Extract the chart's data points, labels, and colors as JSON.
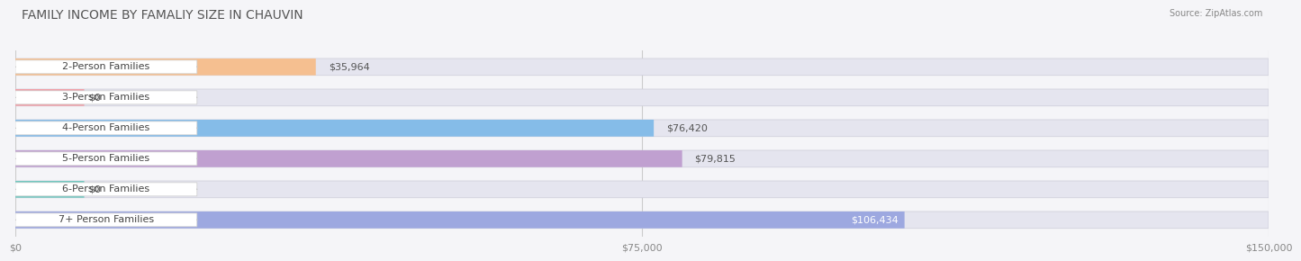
{
  "title": "FAMILY INCOME BY FAMALIY SIZE IN CHAUVIN",
  "source": "Source: ZipAtlas.com",
  "categories": [
    "2-Person Families",
    "3-Person Families",
    "4-Person Families",
    "5-Person Families",
    "6-Person Families",
    "7+ Person Families"
  ],
  "values": [
    35964,
    0,
    76420,
    79815,
    0,
    106434
  ],
  "bar_colors": [
    "#f5bf90",
    "#f0a0a8",
    "#85bce8",
    "#c0a0d0",
    "#72c8c0",
    "#9da8e0"
  ],
  "x_max": 150000,
  "x_ticks": [
    0,
    75000,
    150000
  ],
  "x_tick_labels": [
    "$0",
    "$75,000",
    "$150,000"
  ],
  "value_labels": [
    "$35,964",
    "$0",
    "$76,420",
    "$79,815",
    "$0",
    "$106,434"
  ],
  "bg_color": "#f5f5f8",
  "bar_bg_color": "#e5e5ef",
  "title_fontsize": 10,
  "label_fontsize": 8,
  "value_fontsize": 8,
  "tick_fontsize": 8
}
